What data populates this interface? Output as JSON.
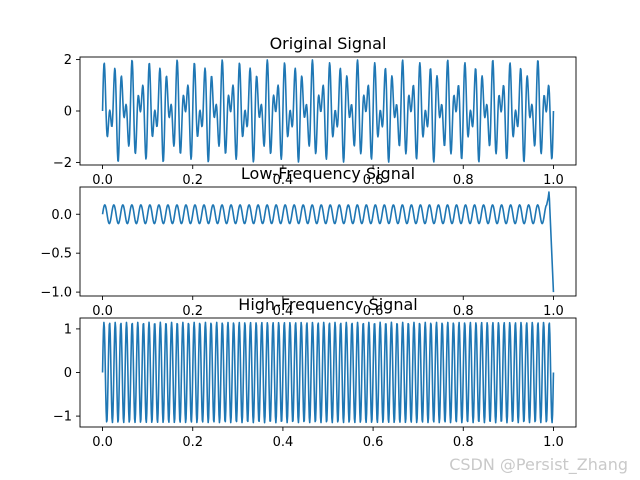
{
  "watermark": "CSDN @Persist_Zhang",
  "chart_data": [
    {
      "type": "line",
      "title": "Original Signal",
      "xlabel": "",
      "ylabel": "",
      "xlim": [
        -0.05,
        1.05
      ],
      "ylim": [
        -2.1,
        2.1
      ],
      "xticks": [
        0.0,
        0.2,
        0.4,
        0.6,
        0.8,
        1.0
      ],
      "xtick_labels": [
        "0.0",
        "0.2",
        "0.4",
        "0.6",
        "0.8",
        "1.0"
      ],
      "yticks": [
        2,
        0,
        -2
      ],
      "ytick_labels": [
        "2",
        "0",
        "−2"
      ],
      "color": "#1f77b4",
      "series": [
        {
          "x_range": [
            0.0,
            1.0
          ],
          "samples": 1000,
          "description_components": [
            {
              "amplitude": 1.0,
              "frequency_hz": 50
            },
            {
              "amplitude": 1.0,
              "frequency_hz": 80
            }
          ]
        }
      ]
    },
    {
      "type": "line",
      "title": "Low-Frequency Signal",
      "xlabel": "",
      "ylabel": "",
      "xlim": [
        -0.05,
        1.05
      ],
      "ylim": [
        -1.05,
        0.35
      ],
      "xticks": [
        0.0,
        0.2,
        0.4,
        0.6,
        0.8,
        1.0
      ],
      "xtick_labels": [
        "0.0",
        "0.2",
        "0.4",
        "0.6",
        "0.8",
        "1.0"
      ],
      "yticks": [
        0.0,
        -0.5,
        -1.0
      ],
      "ytick_labels": [
        "0.0",
        "−0.5",
        "−1.0"
      ],
      "color": "#1f77b4",
      "series": [
        {
          "x_range": [
            0.0,
            1.0
          ],
          "samples": 1000,
          "description_components": [
            {
              "amplitude": 0.12,
              "frequency_hz": 50
            }
          ],
          "end_values": [
            0.3,
            -1.0
          ]
        }
      ]
    },
    {
      "type": "line",
      "title": "High-Frequency Signal",
      "xlabel": "",
      "ylabel": "",
      "xlim": [
        -0.05,
        1.05
      ],
      "ylim": [
        -1.25,
        1.25
      ],
      "xticks": [
        0.0,
        0.2,
        0.4,
        0.6,
        0.8,
        1.0
      ],
      "xtick_labels": [
        "0.0",
        "0.2",
        "0.4",
        "0.6",
        "0.8",
        "1.0"
      ],
      "yticks": [
        1,
        0,
        -1
      ],
      "ytick_labels": [
        "1",
        "0",
        "−1"
      ],
      "color": "#1f77b4",
      "series": [
        {
          "x_range": [
            0.0,
            1.0
          ],
          "samples": 1000,
          "description_components": [
            {
              "amplitude": 1.15,
              "frequency_hz": 80
            }
          ]
        }
      ]
    }
  ]
}
